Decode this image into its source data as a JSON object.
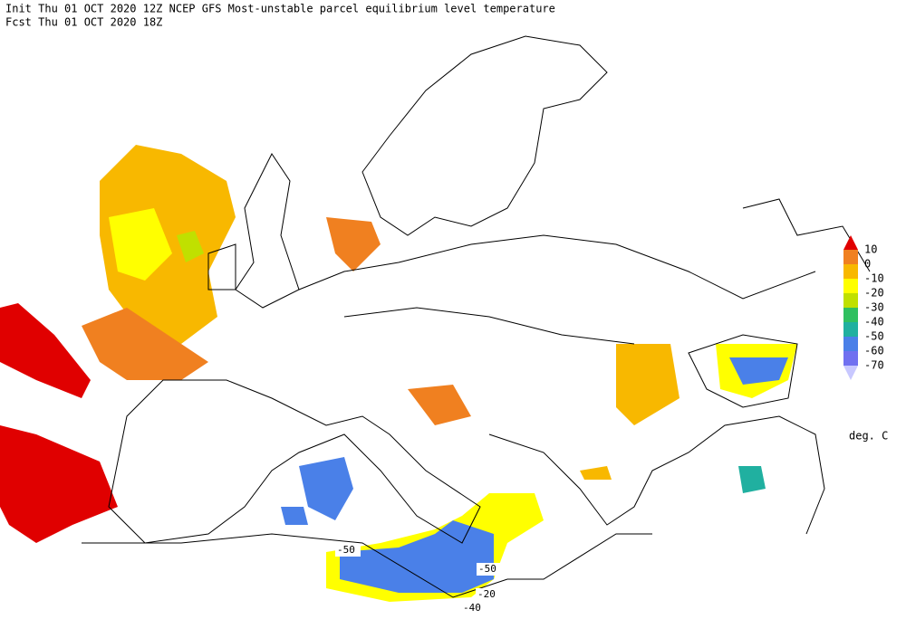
{
  "header": {
    "line1": "Init  Thu 01 OCT 2020 12Z   NCEP GFS Most-unstable parcel equilibrium level temperature",
    "line2": "Fcst Thu 01 OCT 2020 18Z"
  },
  "colorbar": {
    "ticks": [
      10,
      0,
      -10,
      -20,
      -30,
      -40,
      -50,
      -60,
      -70
    ],
    "colors": [
      "#e00000",
      "#f08020",
      "#f8b800",
      "#ffff00",
      "#c0e000",
      "#30c060",
      "#20b0a0",
      "#4a80e8",
      "#7070f0",
      "#c8c8ff"
    ],
    "units": "deg. C"
  },
  "map_labels": [
    -50,
    -50,
    -20,
    -40
  ]
}
